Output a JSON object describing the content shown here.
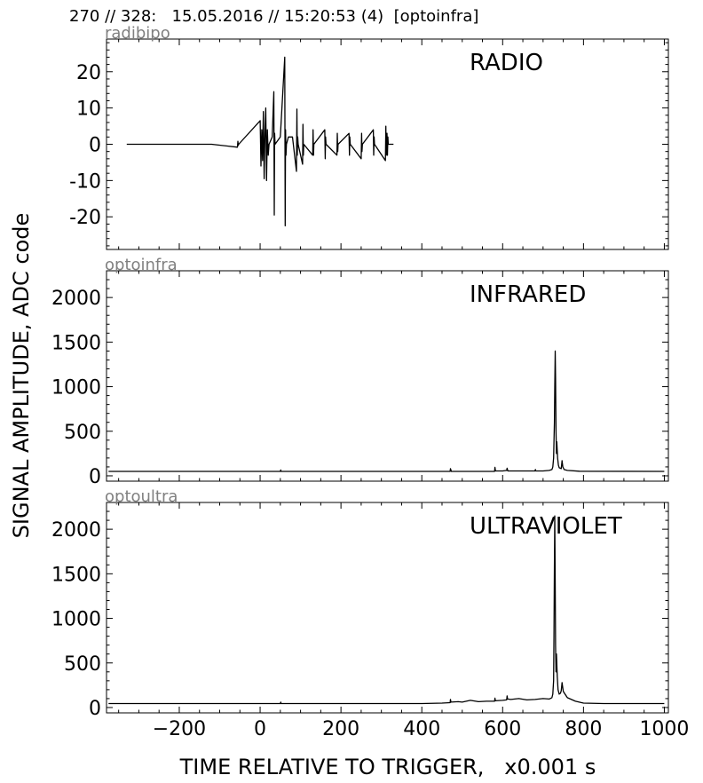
{
  "figure": {
    "suptitle": "270 // 328:   15.05.2016 // 15:20:53 (4)  [optoinfra]",
    "ylabel": "SIGNAL AMPLITUDE,  ADC code",
    "xlabel": "TIME RELATIVE TO TRIGGER,   x0.001 s"
  },
  "chart_data": [
    {
      "type": "line",
      "channel": "radibipo",
      "title": "RADIO",
      "xlim": [
        -380,
        1010
      ],
      "ylim": [
        -29,
        29
      ],
      "xticks": [
        -200,
        0,
        200,
        400,
        600,
        800,
        1000
      ],
      "yticks": [
        -20,
        -10,
        0,
        10,
        20
      ],
      "yticklabels": [
        "-20",
        "-10",
        "0",
        "10",
        "20"
      ],
      "show_xticklabels": false,
      "grid": false,
      "color": "#000000",
      "x": [
        -330,
        -120,
        -56,
        -55,
        -54,
        -53,
        0,
        2,
        4,
        6,
        8,
        10,
        12,
        14,
        16,
        18,
        20,
        22,
        30,
        34,
        35,
        36,
        37,
        50,
        61,
        62,
        63,
        64,
        65,
        70,
        80,
        90,
        91,
        92,
        93,
        94,
        105,
        106,
        107,
        108,
        130,
        131,
        132,
        133,
        160,
        161,
        162,
        163,
        190,
        191,
        192,
        193,
        220,
        221,
        222,
        223,
        250,
        251,
        252,
        253,
        280,
        281,
        282,
        283,
        310,
        311,
        312,
        313,
        314,
        315,
        316,
        317,
        330
      ],
      "y": [
        0,
        0,
        -0.8,
        0.8,
        -0.3,
        0,
        6.5,
        -6,
        4,
        -4.5,
        9,
        -9.5,
        3,
        10,
        -10,
        4,
        -3,
        0,
        2,
        14.5,
        -19.5,
        3,
        0,
        2,
        24,
        -22.5,
        4,
        -3,
        0,
        2,
        2,
        -7.5,
        9.7,
        -3,
        2,
        0,
        -5.5,
        5.5,
        -3,
        0,
        -3,
        4,
        -3,
        0,
        4,
        -4,
        2,
        0,
        -3,
        3,
        -2,
        0,
        3,
        -3,
        2,
        0,
        -4,
        3,
        -2,
        0,
        4,
        -3,
        2,
        0,
        -4.5,
        5,
        -3,
        2,
        3,
        -3,
        2,
        0,
        0
      ]
    },
    {
      "type": "line",
      "channel": "optoinfra",
      "title": "INFRARED",
      "xlim": [
        -380,
        1010
      ],
      "ylim": [
        -60,
        2300
      ],
      "xticks": [
        -200,
        0,
        200,
        400,
        600,
        800,
        1000
      ],
      "yticks": [
        0,
        500,
        1000,
        1500,
        2000
      ],
      "yticklabels": [
        "0",
        "500",
        "1000",
        "1500",
        "2000"
      ],
      "show_xticklabels": false,
      "grid": false,
      "color": "#000000",
      "x": [
        -375,
        50,
        51,
        52,
        470,
        471,
        472,
        473,
        580,
        581,
        582,
        583,
        600,
        610,
        611,
        612,
        613,
        630,
        680,
        681,
        682,
        700,
        715,
        722,
        724,
        726,
        728,
        729,
        730,
        731,
        732,
        733,
        734,
        736,
        738,
        740,
        745,
        747,
        749,
        752,
        760,
        790,
        1000
      ],
      "y": [
        50,
        50,
        65,
        50,
        50,
        80,
        65,
        50,
        50,
        95,
        60,
        55,
        55,
        60,
        85,
        65,
        55,
        55,
        55,
        70,
        55,
        55,
        60,
        70,
        100,
        200,
        600,
        1000,
        1400,
        1100,
        500,
        250,
        380,
        200,
        120,
        90,
        80,
        170,
        100,
        70,
        60,
        52,
        50
      ]
    },
    {
      "type": "line",
      "channel": "optoultra",
      "title": "ULTRAVIOLET",
      "xlim": [
        -380,
        1010
      ],
      "ylim": [
        -60,
        2300
      ],
      "xticks": [
        -200,
        0,
        200,
        400,
        600,
        800,
        1000
      ],
      "yticks": [
        0,
        500,
        1000,
        1500,
        2000
      ],
      "yticklabels": [
        "0",
        "500",
        "1000",
        "1500",
        "2000"
      ],
      "show_xticklabels": true,
      "xticklabels": [
        "−200",
        "0",
        "200",
        "400",
        "600",
        "800",
        "1000"
      ],
      "grid": false,
      "color": "#000000",
      "x": [
        -375,
        50,
        51,
        52,
        400,
        450,
        470,
        471,
        472,
        490,
        500,
        520,
        540,
        560,
        580,
        581,
        582,
        600,
        610,
        611,
        612,
        620,
        640,
        660,
        680,
        700,
        715,
        722,
        724,
        726,
        727,
        728,
        729,
        730,
        731,
        732,
        733,
        735,
        737,
        740,
        743,
        745,
        747,
        750,
        760,
        780,
        800,
        850,
        1000
      ],
      "y": [
        45,
        45,
        60,
        45,
        45,
        50,
        55,
        90,
        60,
        65,
        60,
        80,
        65,
        70,
        70,
        105,
        75,
        80,
        85,
        130,
        95,
        90,
        100,
        85,
        90,
        100,
        95,
        110,
        150,
        300,
        800,
        1600,
        2150,
        1400,
        700,
        400,
        600,
        350,
        200,
        150,
        160,
        190,
        280,
        180,
        110,
        70,
        50,
        45,
        45
      ]
    }
  ]
}
